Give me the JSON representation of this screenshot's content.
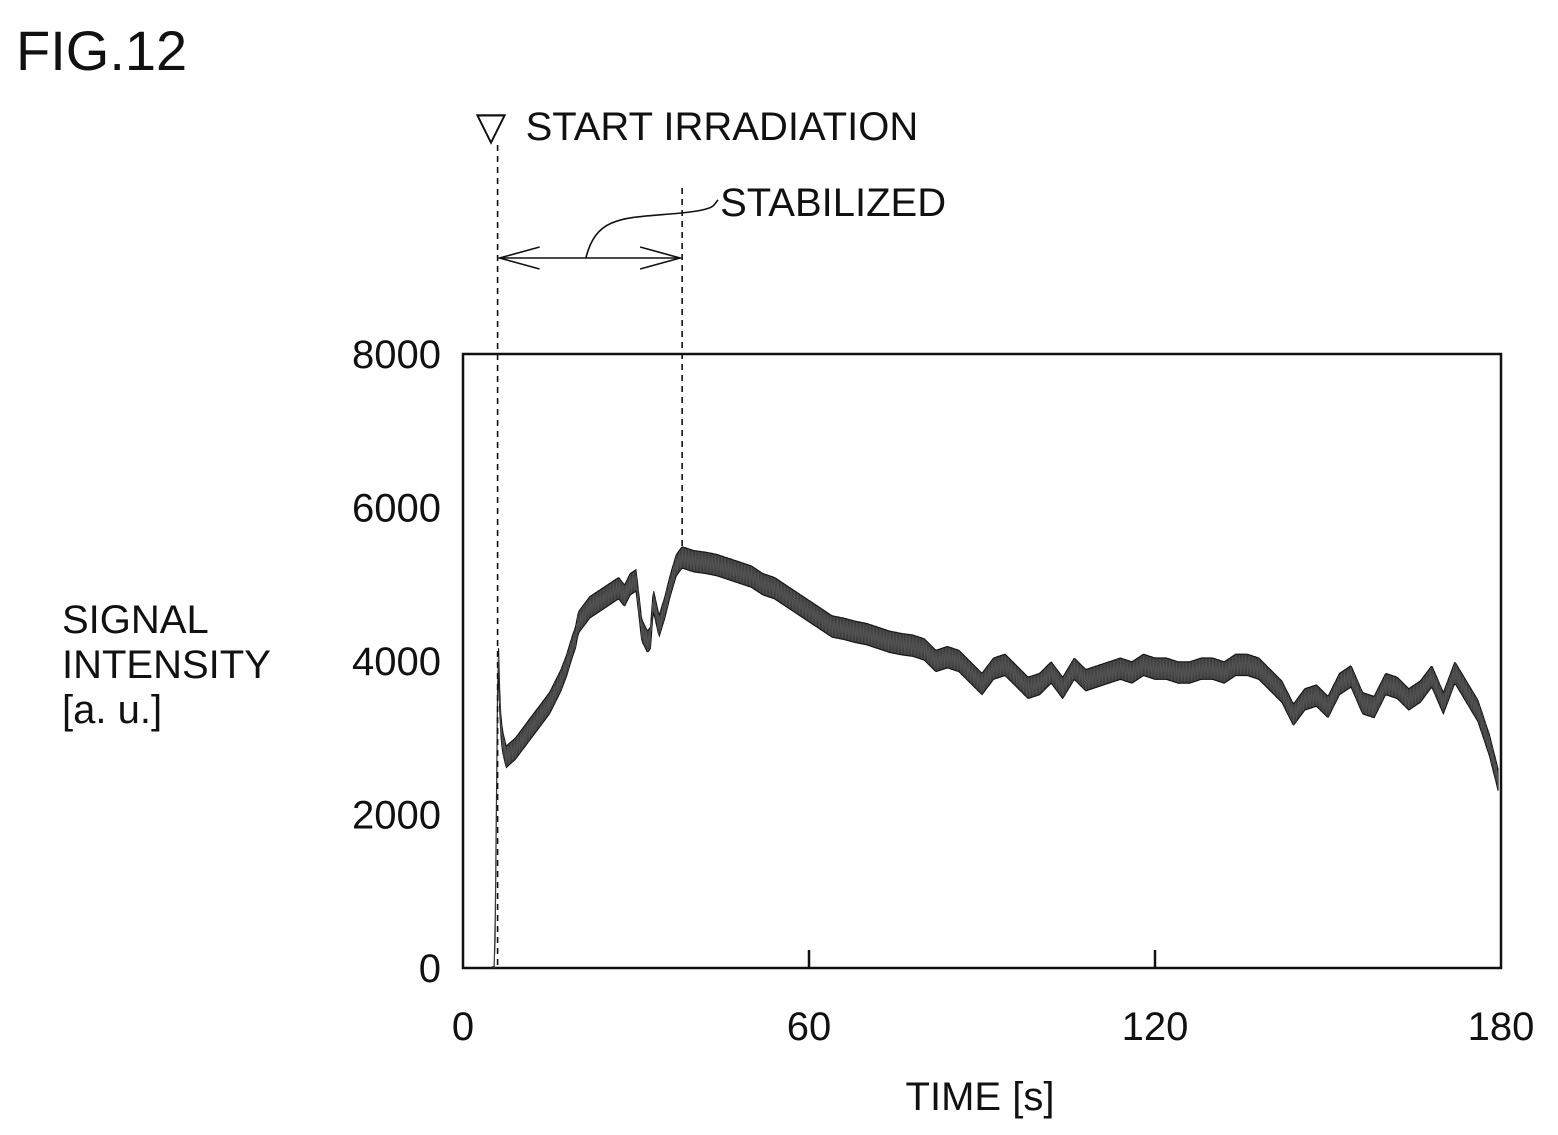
{
  "figure_label": "FIG.12",
  "chart_data": {
    "type": "line",
    "title": "",
    "xlabel": "TIME [s]",
    "ylabel_lines": [
      "SIGNAL",
      "INTENSITY",
      "[a. u.]"
    ],
    "xlim": [
      0,
      180
    ],
    "ylim": [
      0,
      8000
    ],
    "xticks": [
      0,
      60,
      120,
      180
    ],
    "xtick_labels": [
      "0",
      "60",
      "120",
      "180"
    ],
    "yticks": [
      0,
      2000,
      4000,
      6000,
      8000
    ],
    "ytick_labels": [
      "0",
      "2000",
      "4000",
      "6000",
      "8000"
    ],
    "grid": false,
    "series": [
      {
        "color": "#333333",
        "band_width": 280,
        "x": [
          5.2,
          5.5,
          5.7,
          5.9,
          6.0,
          6.1,
          6.3,
          6.6,
          7.0,
          7.5,
          8.2,
          9.0,
          10,
          11,
          12,
          13,
          14,
          15,
          16,
          17,
          18,
          19,
          19.5,
          20,
          21,
          22,
          23,
          24,
          25,
          26,
          27,
          28,
          29,
          30,
          31,
          32,
          32.5,
          33,
          34,
          35,
          36,
          37,
          38,
          40,
          42,
          44,
          46,
          48,
          50,
          52,
          54,
          56,
          58,
          60,
          62,
          64,
          66,
          68,
          70,
          72,
          74,
          76,
          78,
          80,
          82,
          84,
          86,
          88,
          90,
          92,
          94,
          96,
          98,
          100,
          102,
          104,
          106,
          108,
          110,
          112,
          114,
          116,
          118,
          120,
          122,
          124,
          126,
          128,
          130,
          132,
          134,
          136,
          138,
          140,
          142,
          144,
          146,
          148,
          150,
          152,
          154,
          156,
          158,
          160,
          162,
          164,
          166,
          168,
          170,
          172,
          174,
          176,
          178,
          179.5
        ],
        "y": [
          0,
          0,
          1200,
          3000,
          3700,
          4250,
          3600,
          3100,
          2900,
          2750,
          2800,
          2850,
          2950,
          3050,
          3150,
          3250,
          3350,
          3450,
          3600,
          3750,
          3950,
          4200,
          4300,
          4500,
          4600,
          4700,
          4750,
          4800,
          4850,
          4900,
          4950,
          4850,
          5000,
          5050,
          4400,
          4250,
          4300,
          4800,
          4450,
          4700,
          5000,
          5250,
          5350,
          5300,
          5280,
          5250,
          5200,
          5150,
          5100,
          5000,
          4950,
          4850,
          4750,
          4650,
          4550,
          4450,
          4420,
          4380,
          4350,
          4300,
          4250,
          4220,
          4200,
          4150,
          4000,
          4050,
          4000,
          3850,
          3700,
          3900,
          3950,
          3800,
          3650,
          3700,
          3850,
          3650,
          3900,
          3750,
          3800,
          3850,
          3900,
          3850,
          3950,
          3900,
          3900,
          3850,
          3850,
          3900,
          3900,
          3850,
          3950,
          3950,
          3900,
          3750,
          3600,
          3300,
          3500,
          3550,
          3400,
          3700,
          3800,
          3450,
          3400,
          3700,
          3650,
          3500,
          3600,
          3800,
          3450,
          3850,
          3600,
          3350,
          2900,
          2450
        ]
      }
    ],
    "annotations": [
      {
        "text": "START IRRADIATION",
        "marker": "▽",
        "x": 6.0
      },
      {
        "text": "STABILIZED",
        "x": 38.0,
        "range": [
          6.0,
          38.0
        ]
      }
    ]
  }
}
